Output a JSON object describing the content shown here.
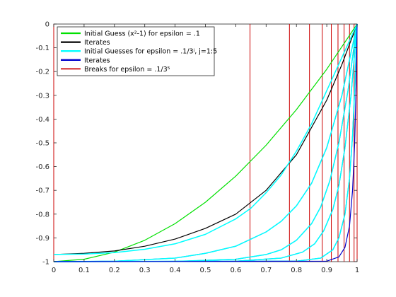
{
  "chart_data": {
    "type": "line",
    "title": "",
    "xlabel": "",
    "ylabel": "",
    "xlim": [
      0,
      1
    ],
    "ylim": [
      -1,
      0
    ],
    "grid": false,
    "legend_location": "top-left",
    "xticks": [
      "0",
      "0.1",
      "0.2",
      "0.3",
      "0.4",
      "0.5",
      "0.6",
      "0.7",
      "0.8",
      "0.9",
      "1"
    ],
    "yticks": [
      "0",
      "-0.1",
      "-0.2",
      "-0.3",
      "-0.4",
      "-0.5",
      "-0.6",
      "-0.7",
      "-0.8",
      "-0.9",
      "-1"
    ],
    "legend": [
      {
        "label": "Initial Guess (x²-1) for epsilon = .1",
        "color": "#00e000",
        "width": 1.5
      },
      {
        "label": "Iterates",
        "color": "#000000",
        "width": 1.5
      },
      {
        "label": "Initial Guesses for epsilon = .1/3ʲ, j=1:5",
        "color": "#00ffff",
        "width": 1.5
      },
      {
        "label": "Iterates",
        "color": "#0000cc",
        "width": 1.5
      },
      {
        "label": "Breaks for epsilon = .1/3⁵",
        "color": "#cc0000",
        "width": 1
      }
    ],
    "series": [
      {
        "color": "#00e000",
        "width": 1.2,
        "x": [
          0,
          0.1,
          0.2,
          0.3,
          0.4,
          0.5,
          0.6,
          0.7,
          0.8,
          0.9,
          1.0
        ],
        "y": [
          -1.0,
          -0.99,
          -0.96,
          -0.91,
          -0.84,
          -0.75,
          -0.64,
          -0.51,
          -0.36,
          -0.19,
          0.0
        ]
      },
      {
        "color": "#000000",
        "width": 1.2,
        "x": [
          0,
          0.1,
          0.2,
          0.3,
          0.4,
          0.5,
          0.6,
          0.7,
          0.8,
          0.9,
          0.95,
          1.0
        ],
        "y": [
          -0.97,
          -0.965,
          -0.955,
          -0.935,
          -0.905,
          -0.86,
          -0.8,
          -0.7,
          -0.55,
          -0.32,
          -0.17,
          0.0
        ]
      },
      {
        "color": "#00ffff",
        "width": 1.5,
        "x": [
          0,
          0.1,
          0.2,
          0.3,
          0.4,
          0.5,
          0.6,
          0.65,
          0.7,
          0.75,
          0.8,
          0.85,
          0.9,
          0.95,
          1.0
        ],
        "y": [
          -0.97,
          -0.968,
          -0.962,
          -0.948,
          -0.925,
          -0.885,
          -0.82,
          -0.775,
          -0.71,
          -0.635,
          -0.535,
          -0.42,
          -0.28,
          -0.14,
          0.0
        ]
      },
      {
        "color": "#0000cc",
        "width": 1.2,
        "x": [
          0,
          0.2,
          0.4,
          0.5,
          0.6,
          0.7,
          0.75,
          0.8,
          0.85,
          0.9,
          0.95,
          1.0
        ],
        "y": [
          -1.0,
          -0.998,
          -0.985,
          -0.965,
          -0.935,
          -0.875,
          -0.83,
          -0.765,
          -0.67,
          -0.52,
          -0.3,
          0.0
        ]
      },
      {
        "color": "#00ffff",
        "width": 1.5,
        "x": [
          0,
          0.2,
          0.4,
          0.5,
          0.6,
          0.7,
          0.75,
          0.8,
          0.85,
          0.9,
          0.95,
          1.0
        ],
        "y": [
          -1.0,
          -0.998,
          -0.985,
          -0.965,
          -0.935,
          -0.875,
          -0.83,
          -0.765,
          -0.67,
          -0.52,
          -0.3,
          0.0
        ]
      },
      {
        "color": "#0000cc",
        "width": 1.2,
        "x": [
          0,
          0.4,
          0.6,
          0.7,
          0.75,
          0.8,
          0.85,
          0.88,
          0.91,
          0.94,
          0.97,
          1.0
        ],
        "y": [
          -1.0,
          -0.999,
          -0.99,
          -0.97,
          -0.95,
          -0.91,
          -0.84,
          -0.77,
          -0.66,
          -0.5,
          -0.28,
          0.0
        ]
      },
      {
        "color": "#00ffff",
        "width": 1.5,
        "x": [
          0,
          0.4,
          0.6,
          0.7,
          0.75,
          0.8,
          0.85,
          0.88,
          0.91,
          0.94,
          0.97,
          1.0
        ],
        "y": [
          -1.0,
          -0.999,
          -0.99,
          -0.97,
          -0.95,
          -0.91,
          -0.84,
          -0.77,
          -0.66,
          -0.5,
          -0.28,
          0.0
        ]
      },
      {
        "color": "#0000cc",
        "width": 1.2,
        "x": [
          0,
          0.6,
          0.75,
          0.82,
          0.86,
          0.89,
          0.92,
          0.94,
          0.96,
          0.98,
          1.0
        ],
        "y": [
          -1.0,
          -0.998,
          -0.985,
          -0.96,
          -0.925,
          -0.87,
          -0.78,
          -0.68,
          -0.52,
          -0.3,
          0.0
        ]
      },
      {
        "color": "#00ffff",
        "width": 1.5,
        "x": [
          0,
          0.6,
          0.75,
          0.82,
          0.86,
          0.89,
          0.92,
          0.94,
          0.96,
          0.98,
          1.0
        ],
        "y": [
          -1.0,
          -0.998,
          -0.985,
          -0.96,
          -0.925,
          -0.87,
          -0.78,
          -0.68,
          -0.52,
          -0.3,
          0.0
        ]
      },
      {
        "color": "#0000cc",
        "width": 1.2,
        "x": [
          0,
          0.8,
          0.88,
          0.92,
          0.94,
          0.96,
          0.975,
          0.985,
          0.993,
          1.0
        ],
        "y": [
          -1.0,
          -0.998,
          -0.985,
          -0.95,
          -0.9,
          -0.8,
          -0.65,
          -0.47,
          -0.25,
          0.0
        ]
      },
      {
        "color": "#00ffff",
        "width": 1.5,
        "x": [
          0,
          0.8,
          0.88,
          0.92,
          0.94,
          0.96,
          0.975,
          0.985,
          0.993,
          1.0
        ],
        "y": [
          -1.0,
          -0.998,
          -0.985,
          -0.95,
          -0.9,
          -0.8,
          -0.65,
          -0.47,
          -0.25,
          0.0
        ]
      },
      {
        "color": "#0000cc",
        "width": 1.2,
        "x": [
          0,
          0.9,
          0.94,
          0.96,
          0.975,
          0.985,
          0.992,
          0.997,
          1.0
        ],
        "y": [
          -1.0,
          -0.998,
          -0.98,
          -0.94,
          -0.85,
          -0.7,
          -0.5,
          -0.25,
          0.0
        ]
      }
    ],
    "breaks_x": [
      0.0,
      0.647,
      0.777,
      0.843,
      0.885,
      0.915,
      0.937,
      0.957,
      0.975,
      0.99,
      1.0
    ],
    "breaks_color": "#cc0000"
  }
}
